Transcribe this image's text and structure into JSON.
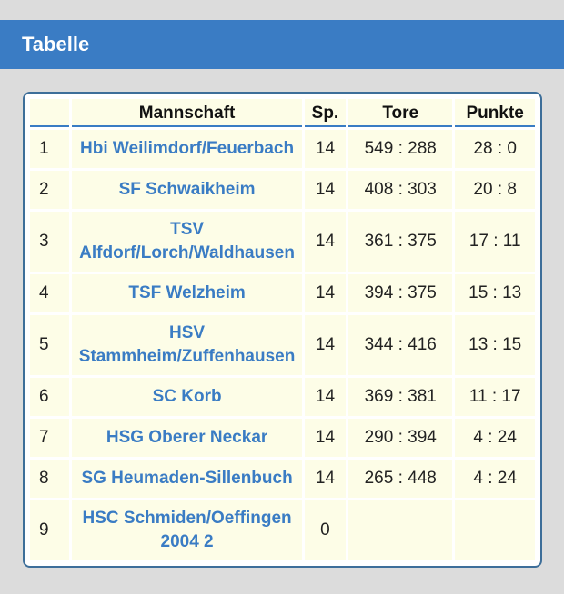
{
  "header": {
    "title": "Tabelle"
  },
  "table": {
    "columns": [
      "",
      "Mannschaft",
      "Sp.",
      "Tore",
      "Punkte"
    ],
    "rows": [
      {
        "rank": "1",
        "team": "Hbi Weilimdorf/Feuerbach",
        "sp": "14",
        "tore": "549 : 288",
        "punkte": "28 : 0"
      },
      {
        "rank": "2",
        "team": "SF Schwaikheim",
        "sp": "14",
        "tore": "408 : 303",
        "punkte": "20 : 8"
      },
      {
        "rank": "3",
        "team": "TSV Alfdorf/Lorch/Waldhausen",
        "sp": "14",
        "tore": "361 : 375",
        "punkte": "17 : 11"
      },
      {
        "rank": "4",
        "team": "TSF Welzheim",
        "sp": "14",
        "tore": "394 : 375",
        "punkte": "15 : 13"
      },
      {
        "rank": "5",
        "team": "HSV Stammheim/Zuffenhausen",
        "sp": "14",
        "tore": "344 : 416",
        "punkte": "13 : 15"
      },
      {
        "rank": "6",
        "team": "SC Korb",
        "sp": "14",
        "tore": "369 : 381",
        "punkte": "11 : 17"
      },
      {
        "rank": "7",
        "team": "HSG Oberer Neckar",
        "sp": "14",
        "tore": "290 : 394",
        "punkte": "4 : 24"
      },
      {
        "rank": "8",
        "team": "SG Heumaden-Sillenbuch",
        "sp": "14",
        "tore": "265 : 448",
        "punkte": "4 : 24"
      },
      {
        "rank": "9",
        "team": "HSC Schmiden/Oeffingen 2004 2",
        "sp": "0",
        "tore": "",
        "punkte": ""
      }
    ]
  }
}
